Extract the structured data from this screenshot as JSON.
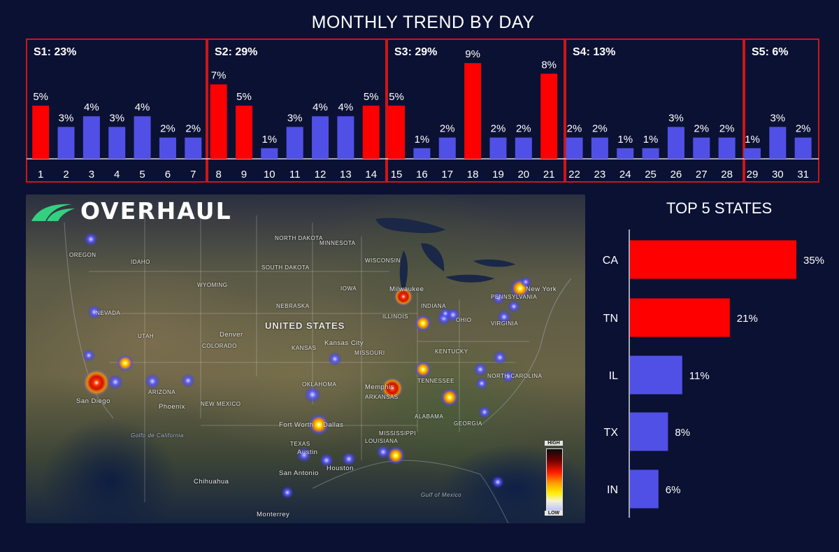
{
  "chart_data": [
    {
      "type": "bar",
      "title": "MONTHLY TREND BY DAY",
      "categories": [
        "1",
        "2",
        "3",
        "4",
        "5",
        "6",
        "7",
        "8",
        "9",
        "10",
        "11",
        "12",
        "13",
        "14",
        "15",
        "16",
        "17",
        "18",
        "19",
        "20",
        "21",
        "22",
        "23",
        "24",
        "25",
        "26",
        "27",
        "28",
        "29",
        "30",
        "31"
      ],
      "values": [
        5,
        3,
        4,
        3,
        4,
        2,
        2,
        7,
        5,
        1,
        3,
        4,
        4,
        5,
        5,
        1,
        2,
        9,
        2,
        2,
        8,
        2,
        2,
        1,
        1,
        3,
        2,
        2,
        1,
        3,
        2
      ],
      "value_suffix": "%",
      "highlighted_days": [
        "1",
        "8",
        "9",
        "14",
        "15",
        "18",
        "21"
      ],
      "sections": [
        {
          "label": "S1: 23%",
          "days": [
            "1",
            "7"
          ]
        },
        {
          "label": "S2: 29%",
          "days": [
            "8",
            "14"
          ]
        },
        {
          "label": "S3: 29%",
          "days": [
            "15",
            "21"
          ]
        },
        {
          "label": "S4: 13%",
          "days": [
            "22",
            "28"
          ]
        },
        {
          "label": "S5: 6%",
          "days": [
            "29",
            "31"
          ]
        }
      ],
      "ylim": [
        0,
        10
      ],
      "grid": false
    },
    {
      "type": "bar",
      "orientation": "horizontal",
      "title": "TOP 5 STATES",
      "categories": [
        "CA",
        "TN",
        "IL",
        "TX",
        "IN"
      ],
      "values": [
        35,
        21,
        11,
        8,
        6
      ],
      "value_suffix": "%",
      "highlighted_categories": [
        "CA",
        "TN"
      ],
      "xlim": [
        0,
        35
      ]
    }
  ],
  "map": {
    "logo_text": "OVERHAUL",
    "country_label": "UNITED STATES",
    "state_labels": [
      "NORTH DAKOTA",
      "MINNESOTA",
      "SOUTH DAKOTA",
      "WISCONSIN",
      "NEBRASKA",
      "IOWA",
      "ILLINOIS",
      "INDIANA",
      "KANSAS",
      "MISSOURI",
      "KENTUCKY",
      "TENNESSEE",
      "OKLAHOMA",
      "ARKANSAS",
      "TEXAS",
      "LOUISIANA",
      "MISSISSIPPI",
      "ALABAMA",
      "GEORGIA",
      "COLORADO",
      "UTAH",
      "NEVADA",
      "ARIZONA",
      "NEW MEXICO",
      "WYOMING",
      "OREGON",
      "IDAHO",
      "VIRGINIA",
      "OHIO",
      "PENNSYLVANIA",
      "NORTH CAROLINA"
    ],
    "city_labels": [
      "Denver",
      "Phoenix",
      "San Diego",
      "Fort Worth",
      "Dallas",
      "Austin",
      "San Antonio",
      "Houston",
      "Memphis",
      "Kansas City",
      "Milwaukee",
      "New York",
      "Monterrey",
      "Chihuahua"
    ],
    "water_labels": [
      "Gulf of Mexico",
      "Golfo de California"
    ],
    "legend": {
      "high": "HIGH",
      "low": "LOW"
    }
  },
  "colors": {
    "background": "#0b1133",
    "highlight": "#ff0000",
    "normal": "#5050e6",
    "section_border": "#d01515",
    "text": "#ffffff"
  }
}
